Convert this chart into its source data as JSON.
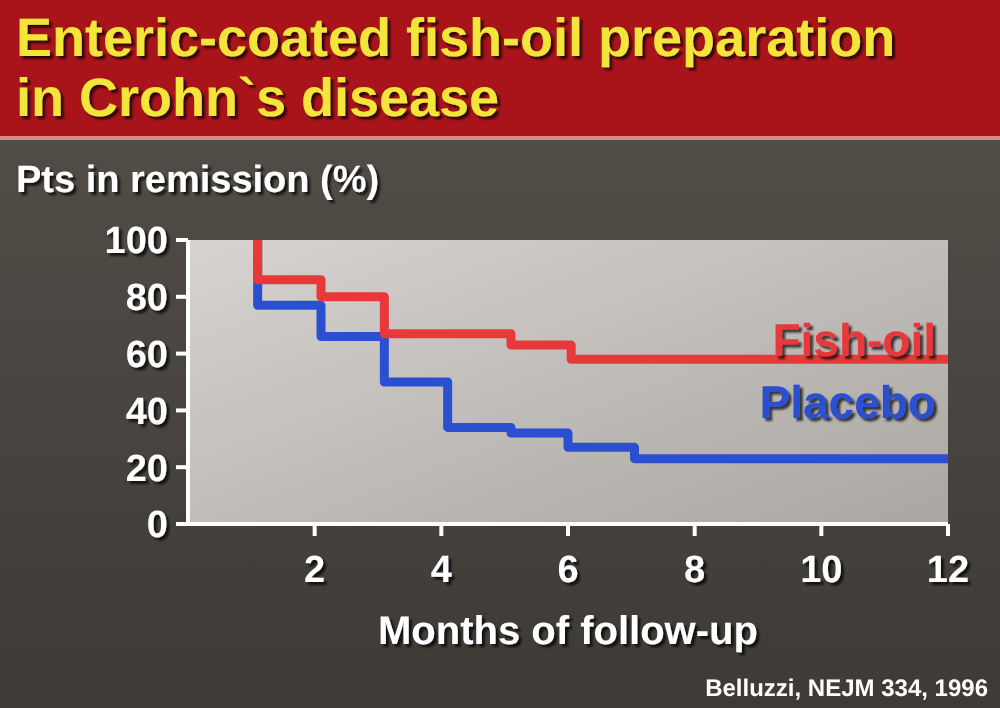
{
  "chart_data": {
    "type": "step",
    "title": "Enteric-coated fish-oil preparation\nin Crohn`s disease",
    "ylabel": "Pts in remission (%)",
    "xlabel": "Months of follow-up",
    "annotations": [
      "Belluzzi, NEJM 334, 1996"
    ],
    "xlim": [
      0,
      12
    ],
    "xticks": [
      2,
      4,
      6,
      8,
      10,
      12
    ],
    "ylim": [
      0,
      100
    ],
    "yticks": [
      0,
      20,
      40,
      60,
      80,
      100
    ],
    "grid": false,
    "series": [
      {
        "name": "Fish-oil",
        "color": "#e8383a",
        "x": [
          1.1,
          1.1,
          2.1,
          3.1,
          5.1,
          6.05,
          12
        ],
        "values": [
          100,
          86,
          80,
          67,
          63,
          58,
          58
        ]
      },
      {
        "name": "Placebo",
        "color": "#2a4fd0",
        "x": [
          1.1,
          1.1,
          2.1,
          3.1,
          4.1,
          5.1,
          6,
          7.05,
          12
        ],
        "values": [
          100,
          77,
          66,
          50,
          34,
          32,
          27,
          23,
          23
        ]
      }
    ]
  }
}
